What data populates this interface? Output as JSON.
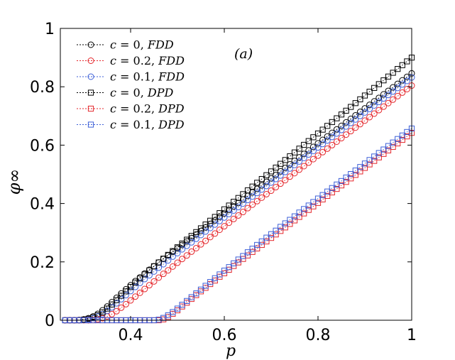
{
  "chart_data": {
    "type": "line",
    "title": "",
    "xlabel": "p",
    "ylabel": "φ∞",
    "xlim": [
      0.25,
      1.0
    ],
    "ylim": [
      0,
      1
    ],
    "xticks": [
      0.4,
      0.6,
      0.8,
      1.0
    ],
    "xtick_labels": [
      "0.4",
      "0.6",
      "0.8",
      "1"
    ],
    "yticks": [
      0,
      0.2,
      0.4,
      0.6,
      0.8,
      1.0
    ],
    "ytick_labels": [
      "0",
      "0.2",
      "0.4",
      "0.6",
      "0.8",
      "1"
    ],
    "annotation": "(a)",
    "grid": false,
    "legend_position": "top-left",
    "x": [
      0.26,
      0.27,
      0.28,
      0.29,
      0.3,
      0.31,
      0.32,
      0.33,
      0.34,
      0.35,
      0.36,
      0.37,
      0.38,
      0.39,
      0.4,
      0.41,
      0.42,
      0.43,
      0.44,
      0.45,
      0.46,
      0.47,
      0.48,
      0.49,
      0.5,
      0.51,
      0.52,
      0.53,
      0.54,
      0.55,
      0.56,
      0.57,
      0.58,
      0.59,
      0.6,
      0.61,
      0.62,
      0.63,
      0.64,
      0.65,
      0.66,
      0.67,
      0.68,
      0.69,
      0.7,
      0.71,
      0.72,
      0.73,
      0.74,
      0.75,
      0.76,
      0.77,
      0.78,
      0.79,
      0.8,
      0.81,
      0.82,
      0.83,
      0.84,
      0.85,
      0.86,
      0.87,
      0.88,
      0.89,
      0.9,
      0.91,
      0.92,
      0.93,
      0.94,
      0.95,
      0.96,
      0.97,
      0.98,
      0.99,
      1.0
    ],
    "series": [
      {
        "name": "c = 0, FDD",
        "color": "#000000",
        "marker": "circle",
        "values": [
          0.0,
          0.0,
          0.0,
          0.001,
          0.003,
          0.007,
          0.013,
          0.022,
          0.034,
          0.047,
          0.062,
          0.077,
          0.092,
          0.106,
          0.12,
          0.134,
          0.147,
          0.16,
          0.173,
          0.185,
          0.198,
          0.21,
          0.222,
          0.234,
          0.246,
          0.258,
          0.27,
          0.282,
          0.294,
          0.306,
          0.318,
          0.33,
          0.342,
          0.354,
          0.366,
          0.378,
          0.39,
          0.402,
          0.414,
          0.426,
          0.438,
          0.45,
          0.462,
          0.474,
          0.486,
          0.498,
          0.51,
          0.522,
          0.534,
          0.546,
          0.558,
          0.57,
          0.582,
          0.594,
          0.606,
          0.618,
          0.63,
          0.642,
          0.654,
          0.666,
          0.678,
          0.69,
          0.702,
          0.714,
          0.726,
          0.738,
          0.75,
          0.762,
          0.774,
          0.786,
          0.798,
          0.81,
          0.822,
          0.834,
          0.846
        ]
      },
      {
        "name": "c = 0.2, FDD",
        "color": "#e4262b",
        "marker": "circle",
        "values": [
          0.0,
          0.0,
          0.0,
          0.0,
          0.0,
          0.0,
          0.001,
          0.003,
          0.007,
          0.013,
          0.021,
          0.031,
          0.043,
          0.055,
          0.068,
          0.081,
          0.094,
          0.107,
          0.12,
          0.133,
          0.146,
          0.159,
          0.171,
          0.184,
          0.197,
          0.21,
          0.222,
          0.235,
          0.247,
          0.26,
          0.272,
          0.285,
          0.297,
          0.31,
          0.322,
          0.334,
          0.347,
          0.359,
          0.371,
          0.384,
          0.396,
          0.408,
          0.42,
          0.432,
          0.444,
          0.456,
          0.468,
          0.48,
          0.492,
          0.504,
          0.516,
          0.528,
          0.54,
          0.552,
          0.564,
          0.576,
          0.588,
          0.6,
          0.612,
          0.624,
          0.636,
          0.648,
          0.66,
          0.672,
          0.684,
          0.696,
          0.708,
          0.72,
          0.732,
          0.744,
          0.756,
          0.768,
          0.78,
          0.792,
          0.804
        ]
      },
      {
        "name": "c = 0.1, FDD",
        "color": "#3c5fd7",
        "marker": "circle",
        "values": [
          0.0,
          0.0,
          0.0,
          0.0,
          0.001,
          0.003,
          0.007,
          0.013,
          0.021,
          0.032,
          0.044,
          0.058,
          0.072,
          0.086,
          0.1,
          0.114,
          0.128,
          0.141,
          0.154,
          0.167,
          0.18,
          0.192,
          0.205,
          0.218,
          0.23,
          0.243,
          0.255,
          0.267,
          0.279,
          0.292,
          0.304,
          0.316,
          0.328,
          0.34,
          0.352,
          0.364,
          0.376,
          0.388,
          0.4,
          0.412,
          0.424,
          0.436,
          0.448,
          0.46,
          0.472,
          0.484,
          0.496,
          0.508,
          0.52,
          0.532,
          0.544,
          0.556,
          0.568,
          0.58,
          0.592,
          0.604,
          0.616,
          0.628,
          0.64,
          0.652,
          0.664,
          0.676,
          0.688,
          0.7,
          0.712,
          0.724,
          0.736,
          0.748,
          0.76,
          0.772,
          0.784,
          0.796,
          0.808,
          0.82,
          0.832
        ]
      },
      {
        "name": "c = 0, DPD",
        "color": "#000000",
        "marker": "square",
        "values": [
          0.0,
          0.0,
          0.0,
          0.0,
          0.002,
          0.005,
          0.01,
          0.017,
          0.027,
          0.04,
          0.054,
          0.069,
          0.084,
          0.099,
          0.114,
          0.129,
          0.143,
          0.157,
          0.171,
          0.185,
          0.198,
          0.211,
          0.224,
          0.237,
          0.25,
          0.263,
          0.276,
          0.289,
          0.302,
          0.315,
          0.328,
          0.341,
          0.354,
          0.367,
          0.38,
          0.393,
          0.406,
          0.419,
          0.432,
          0.445,
          0.458,
          0.471,
          0.484,
          0.497,
          0.51,
          0.523,
          0.536,
          0.549,
          0.562,
          0.575,
          0.588,
          0.601,
          0.614,
          0.627,
          0.64,
          0.653,
          0.666,
          0.679,
          0.692,
          0.705,
          0.718,
          0.731,
          0.744,
          0.757,
          0.77,
          0.783,
          0.796,
          0.809,
          0.822,
          0.835,
          0.848,
          0.861,
          0.874,
          0.887,
          0.9
        ]
      },
      {
        "name": "c = 0.2, DPD",
        "color": "#e4262b",
        "marker": "square",
        "values": [
          0.0,
          0.0,
          0.0,
          0.0,
          0.0,
          0.0,
          0.0,
          0.0,
          0.0,
          0.0,
          0.0,
          0.0,
          0.0,
          0.0,
          0.0,
          0.0,
          0.0,
          0.0,
          0.0,
          0.0,
          0.0,
          0.003,
          0.011,
          0.022,
          0.034,
          0.047,
          0.06,
          0.073,
          0.086,
          0.099,
          0.111,
          0.124,
          0.136,
          0.149,
          0.161,
          0.173,
          0.186,
          0.198,
          0.21,
          0.222,
          0.234,
          0.246,
          0.258,
          0.27,
          0.282,
          0.294,
          0.306,
          0.318,
          0.33,
          0.342,
          0.354,
          0.366,
          0.378,
          0.39,
          0.402,
          0.414,
          0.426,
          0.438,
          0.45,
          0.462,
          0.474,
          0.486,
          0.498,
          0.51,
          0.522,
          0.534,
          0.546,
          0.558,
          0.57,
          0.582,
          0.594,
          0.606,
          0.618,
          0.63,
          0.642
        ]
      },
      {
        "name": "c = 0.1, DPD",
        "color": "#3c5fd7",
        "marker": "square",
        "values": [
          0.0,
          0.0,
          0.0,
          0.0,
          0.0,
          0.0,
          0.0,
          0.0,
          0.0,
          0.0,
          0.0,
          0.0,
          0.0,
          0.0,
          0.0,
          0.0,
          0.0,
          0.0,
          0.0,
          0.0,
          0.002,
          0.008,
          0.017,
          0.028,
          0.04,
          0.053,
          0.066,
          0.079,
          0.092,
          0.105,
          0.118,
          0.131,
          0.144,
          0.157,
          0.17,
          0.182,
          0.195,
          0.208,
          0.22,
          0.233,
          0.245,
          0.258,
          0.27,
          0.283,
          0.295,
          0.307,
          0.32,
          0.332,
          0.344,
          0.356,
          0.369,
          0.381,
          0.393,
          0.405,
          0.417,
          0.429,
          0.441,
          0.453,
          0.465,
          0.477,
          0.489,
          0.501,
          0.513,
          0.525,
          0.537,
          0.549,
          0.561,
          0.573,
          0.585,
          0.597,
          0.609,
          0.621,
          0.633,
          0.645,
          0.657
        ]
      }
    ]
  },
  "legend": {
    "entries": [
      {
        "prefix": "c",
        "eq": " = ",
        "value": "0",
        "sep": ", ",
        "tag": "FDD"
      },
      {
        "prefix": "c",
        "eq": " = ",
        "value": "0.2",
        "sep": ", ",
        "tag": "FDD"
      },
      {
        "prefix": "c",
        "eq": " = ",
        "value": "0.1",
        "sep": ", ",
        "tag": "FDD"
      },
      {
        "prefix": "c",
        "eq": " = ",
        "value": "0",
        "sep": ", ",
        "tag": "DPD"
      },
      {
        "prefix": "c",
        "eq": " = ",
        "value": "0.2",
        "sep": ", ",
        "tag": "DPD"
      },
      {
        "prefix": "c",
        "eq": " = ",
        "value": "0.1",
        "sep": ", ",
        "tag": "DPD"
      }
    ]
  }
}
